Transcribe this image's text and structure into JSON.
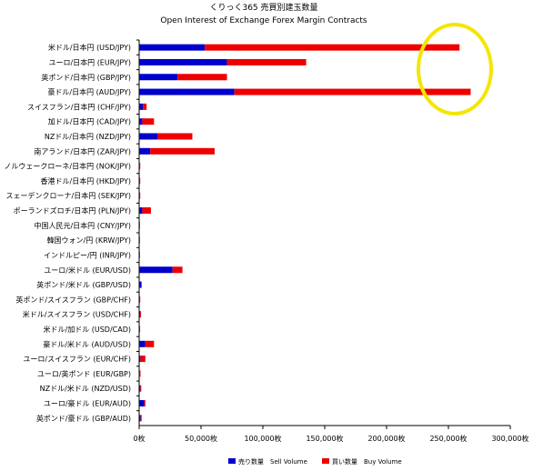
{
  "chart_data": {
    "type": "bar",
    "stacked": true,
    "orientation": "horizontal",
    "title": "くりっく365  売買別建玉数量",
    "subtitle": "Open Interest of Exchange Forex Margin Contracts",
    "categories": [
      "米ドル/日本円 (USD/JPY)",
      "ユーロ/日本円 (EUR/JPY)",
      "英ポンド/日本円 (GBP/JPY)",
      "豪ドル/日本円 (AUD/JPY)",
      "スイスフラン/日本円 (CHF/JPY)",
      "加ドル/日本円 (CAD/JPY)",
      "NZドル/日本円 (NZD/JPY)",
      "南アランド/日本円 (ZAR/JPY)",
      "ノルウェークローネ/日本円 (NOK/JPY)",
      "香港ドル/日本円 (HKD/JPY)",
      "スェーデンクローナ/日本円 (SEK/JPY)",
      "ポーランドズロチ/日本円 (PLN/JPY)",
      "中国人民元/日本円 (CNY/JPY)",
      "韓国ウォン/円 (KRW/JPY)",
      "インドルピー/円 (INR/JPY)",
      "ユーロ/米ドル (EUR/USD)",
      "英ポンド/米ドル (GBP/USD)",
      "英ポンド/スイスフラン (GBP/CHF)",
      "米ドル/スイスフラン (USD/CHF)",
      "米ドル/加ドル (USD/CAD)",
      "豪ドル/米ドル (AUD/USD)",
      "ユーロ/スイスフラン (EUR/CHF)",
      "ユーロ/英ポンド (EUR/GBP)",
      "NZドル/米ドル (NZD/USD)",
      "ユーロ/豪ドル (EUR/AUD)",
      "英ポンド/豪ドル (GBP/AUD)"
    ],
    "series": [
      {
        "name": "売り数量　Sell Volume",
        "color": "#0000cc",
        "values": [
          53000,
          71000,
          31000,
          77000,
          3000,
          2500,
          15000,
          9000,
          300,
          300,
          300,
          2500,
          100,
          100,
          100,
          27000,
          1500,
          300,
          800,
          200,
          5000,
          1000,
          500,
          1000,
          4000,
          1200
        ]
      },
      {
        "name": "買い数量　Buy Volume",
        "color": "#ee0000",
        "values": [
          206000,
          64000,
          40000,
          191000,
          3000,
          9500,
          28000,
          52000,
          500,
          300,
          300,
          7000,
          200,
          200,
          200,
          8000,
          600,
          300,
          700,
          200,
          7000,
          4000,
          300,
          700,
          1000,
          800
        ]
      }
    ],
    "xlim": [
      0,
      300000
    ],
    "xticks": [
      "0枚",
      "50,000枚",
      "100,000枚",
      "150,000枚",
      "200,000枚",
      "250,000枚",
      "300,000枚"
    ],
    "legend": "bottom",
    "grid": false,
    "annotation": {
      "shape": "ellipse",
      "color": "#f4e600",
      "around": "250,000枚"
    }
  }
}
